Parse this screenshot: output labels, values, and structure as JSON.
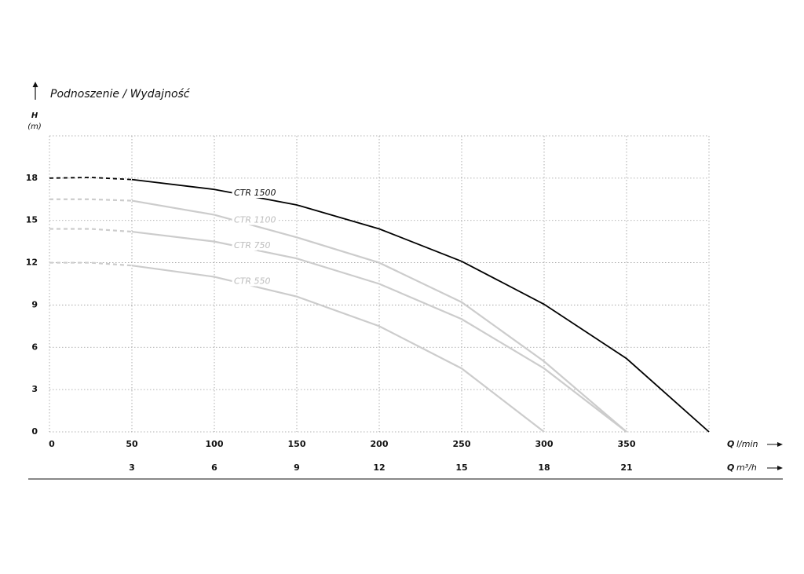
{
  "chart_data": {
    "type": "line",
    "title": "Podnoszenie / Wydajność",
    "y_label": {
      "symbol": "H",
      "unit": "(m)"
    },
    "x_label": {
      "symbol": "Q",
      "unit": "l/min"
    },
    "x2_label": {
      "symbol": "Q",
      "unit": "m³/h"
    },
    "xlim": [
      0,
      400
    ],
    "xticks": [
      0,
      50,
      100,
      150,
      200,
      250,
      300,
      350
    ],
    "x2lim": [
      0,
      24
    ],
    "x2ticks": [
      3,
      6,
      9,
      12,
      15,
      18,
      21
    ],
    "ylim": [
      0,
      21
    ],
    "yticks": [
      0,
      3,
      6,
      9,
      12,
      15,
      18
    ],
    "grid": true,
    "series": [
      {
        "name": "CTR 1500",
        "color": "#000000",
        "x": [
          0,
          25,
          50,
          100,
          150,
          200,
          250,
          300,
          350,
          400
        ],
        "values": [
          18,
          18.05,
          17.9,
          17.2,
          16.1,
          14.4,
          12.1,
          9.05,
          5.2,
          0
        ]
      },
      {
        "name": "CTR 1100",
        "color": "#cccccc",
        "x": [
          0,
          25,
          50,
          100,
          150,
          200,
          250,
          300,
          350
        ],
        "values": [
          16.5,
          16.5,
          16.4,
          15.4,
          13.8,
          12,
          9.2,
          5,
          0
        ]
      },
      {
        "name": "CTR 750",
        "color": "#cccccc",
        "x": [
          0,
          25,
          50,
          100,
          150,
          200,
          250,
          300,
          350
        ],
        "values": [
          14.4,
          14.4,
          14.2,
          13.5,
          12.3,
          10.5,
          8,
          4.5,
          0
        ]
      },
      {
        "name": "CTR 550",
        "color": "#cccccc",
        "x": [
          0,
          25,
          50,
          100,
          150,
          200,
          250,
          300
        ],
        "values": [
          12,
          12,
          11.8,
          11,
          9.6,
          7.5,
          4.5,
          0
        ]
      }
    ]
  }
}
